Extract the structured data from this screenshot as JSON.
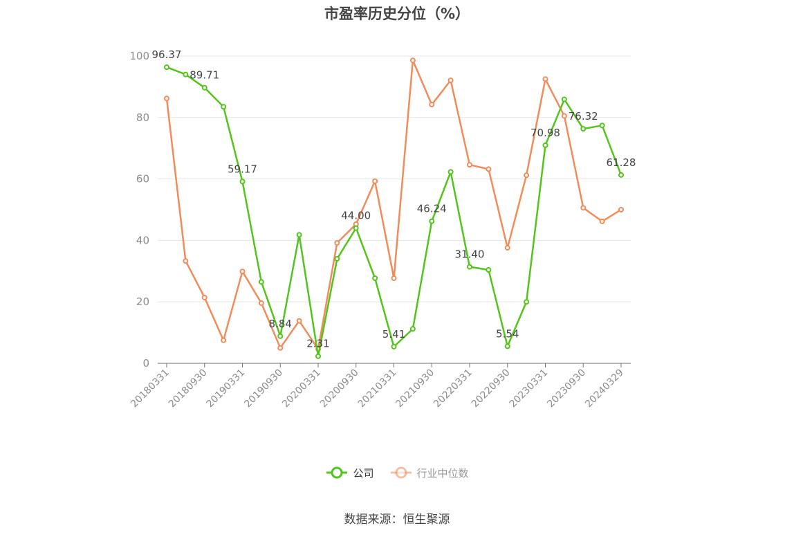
{
  "title": "市盈率历史分位（%）",
  "source": "数据来源：恒生聚源",
  "chart_data": {
    "type": "line",
    "title": "市盈率历史分位（%）",
    "ylim": [
      0,
      100
    ],
    "yticks": [
      0,
      20,
      40,
      60,
      80,
      100
    ],
    "grid": true,
    "legend_position": "bottom",
    "x": [
      "20180331",
      "",
      "20180930",
      "",
      "20190331",
      "",
      "20190930",
      "",
      "20200331",
      "",
      "20200930",
      "",
      "20210331",
      "",
      "20210930",
      "",
      "20220331",
      "",
      "20220930",
      "",
      "20230331",
      "",
      "20230930",
      "",
      "20240329"
    ],
    "xtick_labels": [
      "20180331",
      "20180930",
      "20190331",
      "20190930",
      "20200331",
      "20200930",
      "20210331",
      "20210930",
      "20220331",
      "20220930",
      "20230331",
      "20230930",
      "20240329"
    ],
    "series": [
      {
        "name": "公司",
        "color": "#52c41a",
        "values": [
          96.37,
          94.0,
          89.71,
          83.5,
          59.17,
          26.5,
          8.84,
          41.8,
          2.31,
          34.0,
          44.0,
          27.7,
          5.41,
          11.2,
          46.24,
          62.3,
          31.4,
          30.4,
          5.54,
          20.0,
          70.98,
          85.9,
          76.32,
          77.4,
          61.28
        ],
        "data_labels": [
          {
            "index": 0,
            "text": "96.37"
          },
          {
            "index": 2,
            "text": "89.71"
          },
          {
            "index": 4,
            "text": "59.17"
          },
          {
            "index": 6,
            "text": "8.84"
          },
          {
            "index": 8,
            "text": "2.31"
          },
          {
            "index": 10,
            "text": "44.00"
          },
          {
            "index": 12,
            "text": "5.41"
          },
          {
            "index": 14,
            "text": "46.24"
          },
          {
            "index": 16,
            "text": "31.40"
          },
          {
            "index": 18,
            "text": "5.54"
          },
          {
            "index": 20,
            "text": "70.98"
          },
          {
            "index": 22,
            "text": "76.32"
          },
          {
            "index": 24,
            "text": "61.28"
          }
        ]
      },
      {
        "name": "行业中位数",
        "color": "#f08c5a",
        "values": [
          86.2,
          33.3,
          21.4,
          7.5,
          29.9,
          19.6,
          5.0,
          13.8,
          4.6,
          39.2,
          45.3,
          59.3,
          27.7,
          98.6,
          84.2,
          92.1,
          64.6,
          63.2,
          37.6,
          61.2,
          92.5,
          80.5,
          50.6,
          46.2,
          50.0
        ]
      }
    ]
  }
}
